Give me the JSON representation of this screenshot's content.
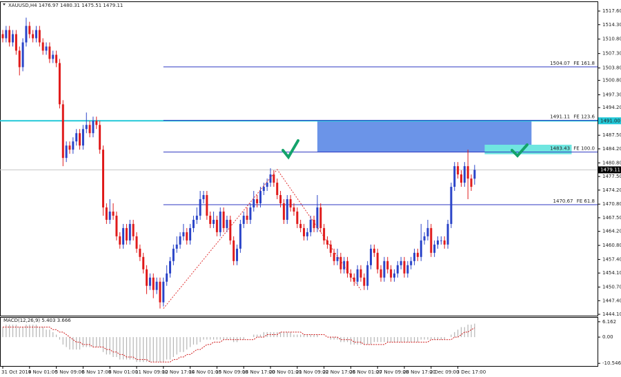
{
  "chart_data": {
    "type": "candlestick",
    "title": "XAUUSD,H4",
    "up_color": "#2a44c8",
    "down_color": "#e01b1b",
    "ylim": [
      1443.77,
      1518.94
    ],
    "yticks": [
      {
        "value": 1517.6,
        "label": "1517.60"
      },
      {
        "value": 1514.3,
        "label": "1514.30"
      },
      {
        "value": 1510.8,
        "label": "1510.80"
      },
      {
        "value": 1507.3,
        "label": "1507.30"
      },
      {
        "value": 1503.8,
        "label": "1503.80"
      },
      {
        "value": 1500.8,
        "label": "1500.80"
      },
      {
        "value": 1497.3,
        "label": "1497.30"
      },
      {
        "value": 1494.2,
        "label": "1494.20"
      },
      {
        "value": 1487.5,
        "label": "1487.50"
      },
      {
        "value": 1484.2,
        "label": "1484.20"
      },
      {
        "value": 1480.8,
        "label": "1480.80"
      },
      {
        "value": 1477.5,
        "label": "1477.50"
      },
      {
        "value": 1474.2,
        "label": "1474.20"
      },
      {
        "value": 1470.8,
        "label": "1470.80"
      },
      {
        "value": 1467.5,
        "label": "1467.50"
      },
      {
        "value": 1464.2,
        "label": "1464.20"
      },
      {
        "value": 1460.8,
        "label": "1460.80"
      },
      {
        "value": 1457.4,
        "label": "1457.40"
      },
      {
        "value": 1454.1,
        "label": "1454.10"
      },
      {
        "value": 1450.7,
        "label": "1450.70"
      },
      {
        "value": 1447.4,
        "label": "1447.40"
      },
      {
        "value": 1444.1,
        "label": "1444.10"
      }
    ],
    "categories": [
      "31 Oct 2019",
      null,
      null,
      null,
      null,
      null,
      null,
      null,
      "4 Nov 01:00",
      null,
      null,
      null,
      null,
      null,
      null,
      null,
      "5 Nov 09:00",
      null,
      null,
      null,
      null,
      null,
      null,
      null,
      "6 Nov 17:00",
      null,
      null,
      null,
      null,
      null,
      null,
      null,
      "8 Nov 01:00",
      null,
      null,
      null,
      null,
      null,
      null,
      null,
      "11 Nov 09:00",
      null,
      null,
      null,
      null,
      null,
      null,
      null,
      "12 Nov 17:00",
      null,
      null,
      null,
      null,
      null,
      null,
      null,
      "14 Nov 01:00",
      null,
      null,
      null,
      null,
      null,
      null,
      null,
      "15 Nov 09:00",
      null,
      null,
      null,
      null,
      null,
      null,
      null,
      "18 Nov 17:00",
      null,
      null,
      null,
      null,
      null,
      null,
      null,
      "20 Nov 01:00",
      null,
      null,
      null,
      null,
      null,
      null,
      null,
      "21 Nov 09:00",
      null,
      null,
      null,
      null,
      null,
      null,
      null,
      "22 Nov 17:00",
      null,
      null,
      null,
      null,
      null,
      null,
      null,
      "26 Nov 01:00",
      null,
      null,
      null,
      null,
      null,
      null,
      null,
      "27 Nov 09:00",
      null,
      null,
      null,
      null,
      null,
      null,
      null,
      "28 Nov 17:00",
      null,
      null,
      null,
      null,
      null,
      null,
      null,
      "2 Dec 09:00",
      null,
      null,
      null,
      null,
      null,
      null,
      null,
      "3 Dec 17:00",
      null,
      null,
      null,
      null,
      null
    ],
    "ohlc": [
      [
        1512,
        1513,
        1510,
        1511
      ],
      [
        1511,
        1514,
        1510,
        1513
      ],
      [
        1513,
        1514,
        1509,
        1510
      ],
      [
        1510,
        1513,
        1509,
        1512
      ],
      [
        1512,
        1513,
        1507,
        1508
      ],
      [
        1508,
        1509,
        1502,
        1504
      ],
      [
        1504,
        1511,
        1503,
        1510
      ],
      [
        1510,
        1516,
        1509,
        1514
      ],
      [
        1514,
        1515,
        1511,
        1512
      ],
      [
        1512,
        1513,
        1510,
        1511
      ],
      [
        1511,
        1514,
        1510,
        1513
      ],
      [
        1513,
        1514,
        1509,
        1510
      ],
      [
        1510,
        1511,
        1507,
        1508
      ],
      [
        1508,
        1510,
        1507,
        1509
      ],
      [
        1509,
        1510,
        1505,
        1506
      ],
      [
        1506,
        1508,
        1505,
        1507
      ],
      [
        1507,
        1508,
        1504,
        1505
      ],
      [
        1505,
        1506,
        1494,
        1495
      ],
      [
        1495,
        1496,
        1480,
        1482
      ],
      [
        1482,
        1486,
        1481,
        1485
      ],
      [
        1485,
        1486,
        1483,
        1484
      ],
      [
        1484,
        1487,
        1483,
        1486
      ],
      [
        1486,
        1489,
        1485,
        1488
      ],
      [
        1488,
        1489,
        1484,
        1485
      ],
      [
        1485,
        1490,
        1484,
        1489
      ],
      [
        1489,
        1493,
        1488,
        1490
      ],
      [
        1490,
        1491,
        1487,
        1488
      ],
      [
        1488,
        1492,
        1487,
        1491
      ],
      [
        1491,
        1492,
        1489,
        1490
      ],
      [
        1490,
        1491,
        1483,
        1484
      ],
      [
        1484,
        1485,
        1468,
        1470
      ],
      [
        1470,
        1471,
        1466,
        1467
      ],
      [
        1467,
        1472,
        1466,
        1469
      ],
      [
        1469,
        1471,
        1467,
        1468
      ],
      [
        1468,
        1469,
        1462,
        1463
      ],
      [
        1463,
        1464,
        1460,
        1461
      ],
      [
        1461,
        1466,
        1460,
        1465
      ],
      [
        1465,
        1466,
        1461,
        1462
      ],
      [
        1462,
        1467,
        1461,
        1466
      ],
      [
        1466,
        1467,
        1462,
        1463
      ],
      [
        1463,
        1464,
        1459,
        1460
      ],
      [
        1460,
        1461,
        1457,
        1458
      ],
      [
        1458,
        1459,
        1454,
        1455
      ],
      [
        1455,
        1456,
        1449,
        1451
      ],
      [
        1451,
        1454,
        1450,
        1453
      ],
      [
        1453,
        1454,
        1448,
        1450
      ],
      [
        1450,
        1453,
        1449,
        1452
      ],
      [
        1452,
        1453,
        1445.5,
        1447
      ],
      [
        1447,
        1453,
        1446,
        1452
      ],
      [
        1452,
        1456,
        1451,
        1454
      ],
      [
        1454,
        1458,
        1453,
        1457
      ],
      [
        1457,
        1461,
        1456,
        1460
      ],
      [
        1460,
        1463,
        1459,
        1461
      ],
      [
        1461,
        1464,
        1460,
        1463
      ],
      [
        1463,
        1466,
        1462,
        1464
      ],
      [
        1464,
        1465,
        1461,
        1462
      ],
      [
        1462,
        1466,
        1461,
        1465
      ],
      [
        1465,
        1468,
        1464,
        1467
      ],
      [
        1467,
        1470,
        1466,
        1468
      ],
      [
        1468,
        1474,
        1467,
        1472
      ],
      [
        1472,
        1474,
        1471,
        1473
      ],
      [
        1473,
        1474,
        1467,
        1468
      ],
      [
        1468,
        1469,
        1465,
        1466
      ],
      [
        1466,
        1469,
        1465,
        1467
      ],
      [
        1467,
        1468,
        1463,
        1464
      ],
      [
        1464,
        1470,
        1463,
        1469
      ],
      [
        1469,
        1470,
        1464,
        1465
      ],
      [
        1465,
        1468,
        1464,
        1467
      ],
      [
        1467,
        1468,
        1461,
        1462
      ],
      [
        1462,
        1463,
        1456,
        1457
      ],
      [
        1457,
        1461,
        1456,
        1460
      ],
      [
        1460,
        1467,
        1459,
        1466
      ],
      [
        1466,
        1469,
        1465,
        1468
      ],
      [
        1468,
        1470,
        1466,
        1467
      ],
      [
        1467,
        1471,
        1466,
        1470
      ],
      [
        1470,
        1474,
        1469,
        1472
      ],
      [
        1472,
        1473,
        1470,
        1471
      ],
      [
        1471,
        1475,
        1470,
        1474
      ],
      [
        1474,
        1476,
        1473,
        1475
      ],
      [
        1475,
        1477,
        1474,
        1476
      ],
      [
        1476,
        1479.5,
        1475,
        1478
      ],
      [
        1478,
        1479,
        1475,
        1476
      ],
      [
        1476,
        1477,
        1472,
        1473
      ],
      [
        1473,
        1474,
        1470,
        1471
      ],
      [
        1471,
        1472,
        1466,
        1467
      ],
      [
        1467,
        1473,
        1466,
        1472
      ],
      [
        1472,
        1473,
        1469,
        1470
      ],
      [
        1470,
        1471,
        1468,
        1469
      ],
      [
        1469,
        1470,
        1465,
        1466
      ],
      [
        1466,
        1467,
        1464,
        1465
      ],
      [
        1465,
        1466,
        1462,
        1463
      ],
      [
        1463,
        1465,
        1462,
        1464
      ],
      [
        1464,
        1468,
        1463,
        1467
      ],
      [
        1467,
        1468,
        1464,
        1465
      ],
      [
        1465,
        1473,
        1464,
        1470
      ],
      [
        1470,
        1471,
        1464,
        1465
      ],
      [
        1465,
        1466,
        1461,
        1462
      ],
      [
        1462,
        1463,
        1460,
        1461
      ],
      [
        1461,
        1462,
        1458,
        1459
      ],
      [
        1459,
        1460,
        1456,
        1457
      ],
      [
        1457,
        1460,
        1456,
        1458
      ],
      [
        1458,
        1459,
        1454,
        1455
      ],
      [
        1455,
        1458,
        1454,
        1457
      ],
      [
        1457,
        1458,
        1453,
        1454
      ],
      [
        1454,
        1455,
        1452,
        1453
      ],
      [
        1453,
        1454,
        1451,
        1452
      ],
      [
        1452,
        1456,
        1451,
        1455
      ],
      [
        1455,
        1456,
        1452,
        1453
      ],
      [
        1453,
        1454,
        1450,
        1451
      ],
      [
        1451,
        1457,
        1450,
        1456
      ],
      [
        1456,
        1461,
        1455,
        1460
      ],
      [
        1460,
        1461,
        1458,
        1459
      ],
      [
        1459,
        1460,
        1454,
        1455
      ],
      [
        1455,
        1456,
        1452,
        1453
      ],
      [
        1453,
        1458,
        1452,
        1457
      ],
      [
        1457,
        1458,
        1454,
        1455
      ],
      [
        1455,
        1456,
        1452,
        1453
      ],
      [
        1453,
        1455,
        1452,
        1454
      ],
      [
        1454,
        1457,
        1453,
        1456
      ],
      [
        1456,
        1458,
        1455,
        1457
      ],
      [
        1457,
        1458,
        1453,
        1454
      ],
      [
        1454,
        1457,
        1453,
        1456
      ],
      [
        1456,
        1458,
        1455,
        1457
      ],
      [
        1457,
        1460,
        1456,
        1459
      ],
      [
        1459,
        1460,
        1457,
        1458
      ],
      [
        1458,
        1466,
        1457,
        1462
      ],
      [
        1462,
        1464,
        1461,
        1463
      ],
      [
        1463,
        1467,
        1462,
        1465
      ],
      [
        1465,
        1466,
        1458,
        1459
      ],
      [
        1459,
        1462,
        1458,
        1461
      ],
      [
        1461,
        1463,
        1460,
        1462
      ],
      [
        1462,
        1463,
        1461,
        1462
      ],
      [
        1462,
        1463,
        1460,
        1461
      ],
      [
        1461,
        1467,
        1460,
        1466
      ],
      [
        1466,
        1476,
        1465,
        1475
      ],
      [
        1475,
        1481,
        1474,
        1480
      ],
      [
        1480,
        1481,
        1477,
        1478
      ],
      [
        1478,
        1479,
        1475,
        1476
      ],
      [
        1476,
        1481,
        1475,
        1480
      ],
      [
        1480,
        1484,
        1472,
        1477
      ],
      [
        1477,
        1478,
        1474,
        1475
      ],
      [
        1476.97,
        1480.31,
        1475.51,
        1479.11
      ]
    ],
    "levels": [
      {
        "value": 1504.07,
        "label": "FE 161.8"
      },
      {
        "value": 1491.11,
        "label": "FE 123.6"
      },
      {
        "value": 1483.43,
        "label": "FE 100.0"
      },
      {
        "value": 1470.67,
        "label": "FE 61.8"
      }
    ],
    "levels_start": 48,
    "level_color": "#2b35c0",
    "hline": {
      "value": 1491.0,
      "label": "1491.00",
      "color": "#22c8d8"
    },
    "zone": {
      "x": [
        94,
        158
      ],
      "y": [
        1483.43,
        1491.0
      ],
      "color": "#6b94e8"
    },
    "zone2": {
      "x": [
        144,
        170
      ],
      "y": [
        1482.9,
        1485.2
      ],
      "color": "#6fe6e0"
    },
    "zigzag": {
      "x": [
        48,
        82,
        107
      ],
      "y": [
        1445.5,
        1479.2,
        1450.0
      ],
      "color": "#e03030"
    },
    "macd": {
      "title": "MACD(12,26,9)",
      "ylim": [
        -11.6,
        7.78
      ],
      "yticks": [
        6.162,
        {
          "value": 0,
          "label": "0.00"
        },
        -10.546
      ],
      "histogram": [
        4,
        5,
        5,
        5,
        5,
        4,
        4,
        5,
        5,
        5,
        5,
        4,
        4,
        3,
        3,
        2,
        1,
        -1,
        -3,
        -4,
        -5,
        -5,
        -5,
        -5,
        -4,
        -4,
        -4,
        -4,
        -4,
        -4,
        -6,
        -7,
        -7,
        -8,
        -8,
        -9,
        -9,
        -9,
        -9,
        -9,
        -10,
        -10,
        -10,
        -10,
        -10,
        -10,
        -10,
        -10,
        -10,
        -9,
        -9,
        -8,
        -7,
        -6,
        -6,
        -5,
        -4,
        -3,
        -3,
        -2,
        -1,
        -1,
        -1,
        -1,
        -1,
        -1,
        -1,
        -1,
        -1,
        -2,
        -2,
        -1,
        -1,
        0,
        0,
        1,
        1,
        1,
        2,
        2,
        2,
        2,
        2,
        2,
        2,
        2,
        2,
        1,
        1,
        1,
        1,
        1,
        1,
        1,
        1,
        0,
        0,
        0,
        -1,
        -1,
        -1,
        -2,
        -2,
        -2,
        -3,
        -3,
        -3,
        -3,
        -3,
        -3,
        -3,
        -2,
        -2,
        -2,
        -2,
        -2,
        -2,
        -2,
        -2,
        -2,
        -2,
        -2,
        -2,
        -2,
        -2,
        -1,
        -1,
        -1,
        -1,
        -1,
        -1,
        -1,
        -1,
        0,
        1,
        2,
        3,
        4,
        4,
        5,
        5,
        5.403
      ],
      "signal": [
        4,
        4,
        4,
        4,
        4,
        4,
        4,
        4,
        4,
        4,
        4,
        4,
        4,
        4,
        4,
        3,
        3,
        2,
        2,
        1,
        0,
        -1,
        -2,
        -2,
        -3,
        -3,
        -3,
        -4,
        -4,
        -4,
        -4,
        -5,
        -5,
        -6,
        -6,
        -7,
        -7,
        -8,
        -8,
        -8,
        -9,
        -9,
        -9,
        -9,
        -10,
        -10,
        -10,
        -10,
        -10,
        -10,
        -10,
        -9,
        -9,
        -8,
        -8,
        -7,
        -7,
        -6,
        -5,
        -5,
        -4,
        -3,
        -3,
        -2,
        -2,
        -2,
        -1,
        -1,
        -1,
        -1,
        -1,
        -1,
        -1,
        -1,
        -1,
        -1,
        0,
        0,
        0,
        1,
        1,
        1,
        1,
        2,
        2,
        2,
        2,
        2,
        2,
        2,
        1,
        1,
        1,
        1,
        1,
        1,
        1,
        0,
        0,
        0,
        0,
        -1,
        -1,
        -1,
        -1,
        -2,
        -2,
        -2,
        -3,
        -3,
        -3,
        -3,
        -3,
        -3,
        -3,
        -2,
        -2,
        -2,
        -2,
        -2,
        -2,
        -2,
        -2,
        -2,
        -2,
        -2,
        -2,
        -2,
        -1,
        -1,
        -1,
        -1,
        -1,
        -1,
        -1,
        0,
        0,
        1,
        2,
        2,
        3,
        3.666
      ],
      "hist_color": "#b4b4b4",
      "signal_color": "#d01818"
    }
  }
}
